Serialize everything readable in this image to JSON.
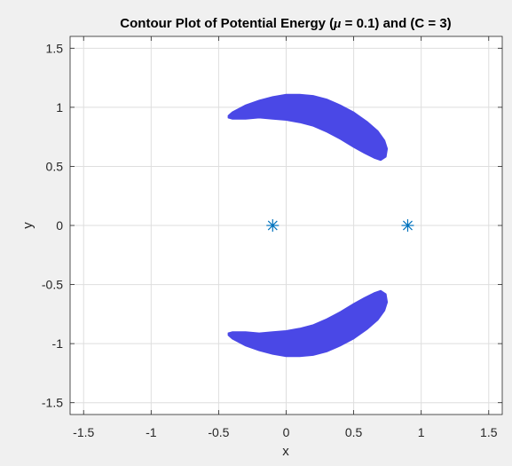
{
  "chart_data": {
    "type": "contour",
    "title_parts": {
      "prefix": "Contour Plot of Potential Energy (",
      "symbol": "μ",
      "suffix": " = 0.1) and (C = 3)"
    },
    "xlabel": "x",
    "ylabel": "y",
    "xlim": [
      -1.6,
      1.6
    ],
    "ylim": [
      -1.6,
      1.6
    ],
    "xticks": [
      -1.5,
      -1,
      -0.5,
      0,
      0.5,
      1,
      1.5
    ],
    "xtick_labels": [
      "-1.5",
      "-1",
      "-0.5",
      "0",
      "0.5",
      "1",
      "1.5"
    ],
    "yticks": [
      -1.5,
      -1,
      -0.5,
      0,
      0.5,
      1,
      1.5
    ],
    "ytick_labels": [
      "-1.5",
      "-1",
      "-0.5",
      "0",
      "0.5",
      "1",
      "1.5"
    ],
    "grid": true,
    "fill_color": "#4a48e6",
    "marker_color": "#0072bd",
    "regions": [
      {
        "name": "upper-region",
        "outline": [
          [
            -0.43,
            0.91
          ],
          [
            -0.43,
            0.93
          ],
          [
            -0.4,
            0.96
          ],
          [
            -0.3,
            1.02
          ],
          [
            -0.2,
            1.06
          ],
          [
            -0.1,
            1.09
          ],
          [
            0.0,
            1.11
          ],
          [
            0.1,
            1.11
          ],
          [
            0.2,
            1.1
          ],
          [
            0.3,
            1.07
          ],
          [
            0.4,
            1.02
          ],
          [
            0.5,
            0.96
          ],
          [
            0.6,
            0.88
          ],
          [
            0.68,
            0.8
          ],
          [
            0.73,
            0.72
          ],
          [
            0.75,
            0.65
          ],
          [
            0.74,
            0.58
          ],
          [
            0.7,
            0.55
          ],
          [
            0.65,
            0.57
          ],
          [
            0.58,
            0.61
          ],
          [
            0.5,
            0.66
          ],
          [
            0.4,
            0.73
          ],
          [
            0.3,
            0.79
          ],
          [
            0.2,
            0.84
          ],
          [
            0.1,
            0.87
          ],
          [
            0.0,
            0.89
          ],
          [
            -0.1,
            0.9
          ],
          [
            -0.2,
            0.91
          ],
          [
            -0.3,
            0.9
          ],
          [
            -0.4,
            0.9
          ]
        ]
      },
      {
        "name": "lower-region",
        "outline": [
          [
            -0.43,
            -0.91
          ],
          [
            -0.43,
            -0.93
          ],
          [
            -0.4,
            -0.96
          ],
          [
            -0.3,
            -1.02
          ],
          [
            -0.2,
            -1.06
          ],
          [
            -0.1,
            -1.09
          ],
          [
            0.0,
            -1.11
          ],
          [
            0.1,
            -1.11
          ],
          [
            0.2,
            -1.1
          ],
          [
            0.3,
            -1.07
          ],
          [
            0.4,
            -1.02
          ],
          [
            0.5,
            -0.96
          ],
          [
            0.6,
            -0.88
          ],
          [
            0.68,
            -0.8
          ],
          [
            0.73,
            -0.72
          ],
          [
            0.75,
            -0.65
          ],
          [
            0.74,
            -0.58
          ],
          [
            0.7,
            -0.55
          ],
          [
            0.65,
            -0.57
          ],
          [
            0.58,
            -0.61
          ],
          [
            0.5,
            -0.66
          ],
          [
            0.4,
            -0.73
          ],
          [
            0.3,
            -0.79
          ],
          [
            0.2,
            -0.84
          ],
          [
            0.1,
            -0.87
          ],
          [
            0.0,
            -0.89
          ],
          [
            -0.1,
            -0.9
          ],
          [
            -0.2,
            -0.91
          ],
          [
            -0.3,
            -0.9
          ],
          [
            -0.4,
            -0.9
          ]
        ]
      }
    ],
    "markers": [
      {
        "name": "primary-mass",
        "x": -0.1,
        "y": 0
      },
      {
        "name": "secondary-mass",
        "x": 0.9,
        "y": 0
      }
    ]
  }
}
